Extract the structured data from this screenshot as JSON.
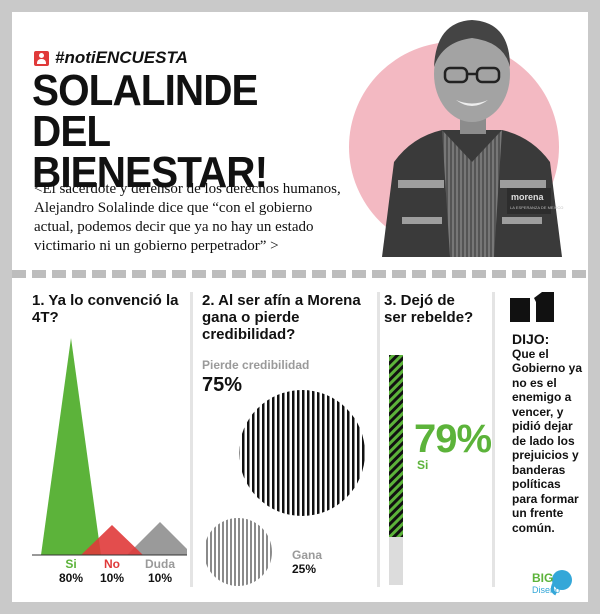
{
  "header": {
    "tag": "#notiENCUESTA",
    "headline_line1": "SOLALINDE DEL",
    "headline_line2": "BIENESTAR!",
    "dek": "<El sacerdote y defensor de los derechos humanos, Alejandro Solalinde dice que “con el gobierno actual, podemos decir que ya no hay un estado victimario ni un gobierno perpetrador” >",
    "vest_text": "morena",
    "vest_subtext": "LA ESPERANZA DE MEXICO"
  },
  "q1": {
    "question": "1. Ya lo convenció la 4T?",
    "options": [
      {
        "label": "Si",
        "value": "80%",
        "color": "#5cb33a"
      },
      {
        "label": "No",
        "value": "10%",
        "color": "#e03a3a"
      },
      {
        "label": "Duda",
        "value": "10%",
        "color": "#9a9a9a"
      }
    ]
  },
  "q2": {
    "question": "2. Al ser afín a Morena gana o pierde credibilidad?",
    "options": [
      {
        "label": "Pierde credibilidad",
        "value": "75%"
      },
      {
        "label": "Gana",
        "value": "25%"
      }
    ]
  },
  "q3": {
    "question": "3. Dejó de ser rebelde?",
    "value": "79%",
    "label": "Si",
    "fill_fraction": 0.79,
    "color": "#5cb33a"
  },
  "quote": {
    "label": "DIJO:",
    "text": "Que el Gobierno ya no es el enemigo a vencer, y pidió dejar de lado los prejuicios y banderas políticas para formar un frente común."
  },
  "brand": {
    "logo_line1": "BIG",
    "logo_line2": "Diseño"
  }
}
